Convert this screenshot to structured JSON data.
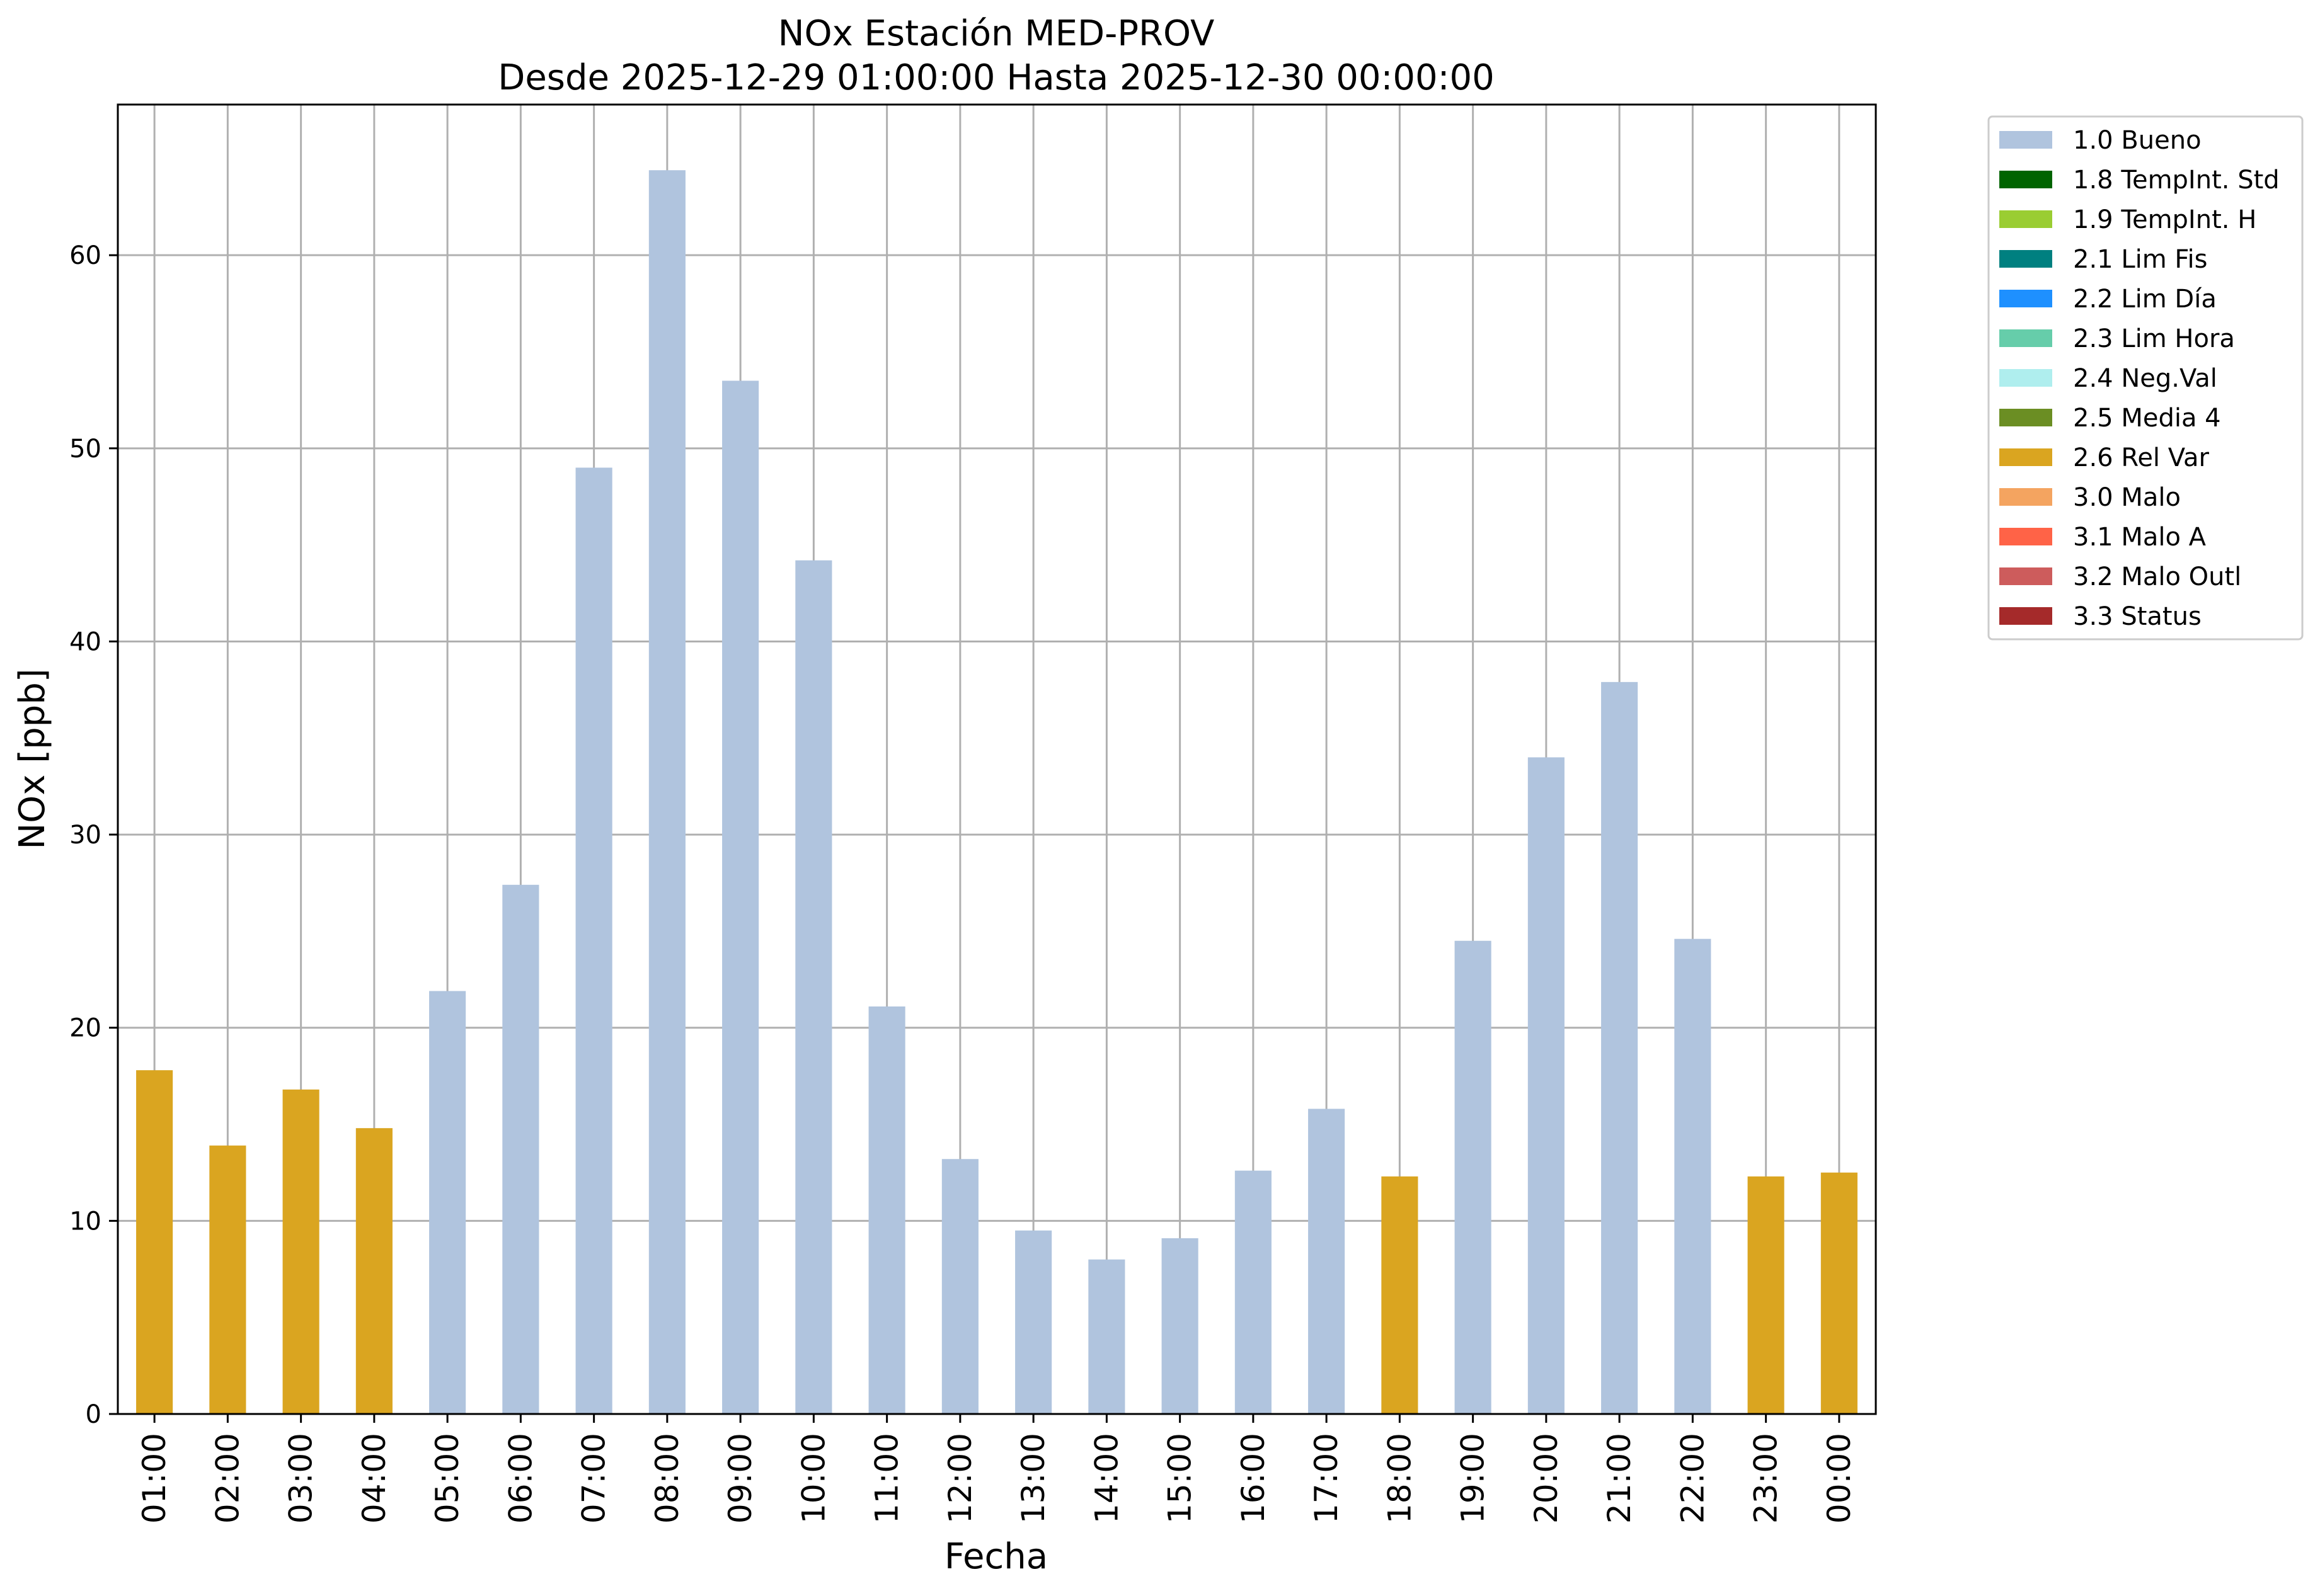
{
  "chart_data": {
    "type": "bar",
    "title": "NOx Estación MED-PROV",
    "subtitle": "Desde 2025-12-29 01:00:00 Hasta 2025-12-30 00:00:00",
    "xlabel": "Fecha",
    "ylabel": "NOx [ppb]",
    "ylim": [
      0,
      67.8
    ],
    "yticks": [
      0,
      10,
      20,
      30,
      40,
      50,
      60
    ],
    "grid": true,
    "legend_position": "outside-top-right",
    "categories": [
      "01:00",
      "02:00",
      "03:00",
      "04:00",
      "05:00",
      "06:00",
      "07:00",
      "08:00",
      "09:00",
      "10:00",
      "11:00",
      "12:00",
      "13:00",
      "14:00",
      "15:00",
      "16:00",
      "17:00",
      "18:00",
      "19:00",
      "20:00",
      "21:00",
      "22:00",
      "23:00",
      "00:00"
    ],
    "values": [
      17.8,
      13.9,
      16.8,
      14.8,
      21.9,
      27.4,
      49.0,
      64.4,
      53.5,
      44.2,
      21.1,
      13.2,
      9.5,
      8.0,
      9.1,
      12.6,
      15.8,
      12.3,
      24.5,
      34.0,
      37.9,
      24.6,
      12.3,
      12.5
    ],
    "flags": [
      "2.6 Rel Var",
      "2.6 Rel Var",
      "2.6 Rel Var",
      "2.6 Rel Var",
      "1.0 Bueno",
      "1.0 Bueno",
      "1.0 Bueno",
      "1.0 Bueno",
      "1.0 Bueno",
      "1.0 Bueno",
      "1.0 Bueno",
      "1.0 Bueno",
      "1.0 Bueno",
      "1.0 Bueno",
      "1.0 Bueno",
      "1.0 Bueno",
      "1.0 Bueno",
      "2.6 Rel Var",
      "1.0 Bueno",
      "1.0 Bueno",
      "1.0 Bueno",
      "1.0 Bueno",
      "2.6 Rel Var",
      "2.6 Rel Var"
    ],
    "legend": [
      {
        "label": "1.0 Bueno",
        "color": "#b0c4de"
      },
      {
        "label": "1.8 TempInt. Std",
        "color": "#006400"
      },
      {
        "label": "1.9 TempInt. H",
        "color": "#9acd32"
      },
      {
        "label": "2.1 Lim Fis",
        "color": "#008080"
      },
      {
        "label": "2.2 Lim Día",
        "color": "#1e90ff"
      },
      {
        "label": "2.3 Lim Hora",
        "color": "#66cdaa"
      },
      {
        "label": "2.4 Neg.Val",
        "color": "#afeeee"
      },
      {
        "label": "2.5 Media 4",
        "color": "#6b8e23"
      },
      {
        "label": "2.6 Rel Var",
        "color": "#daa520"
      },
      {
        "label": "3.0 Malo",
        "color": "#f4a460"
      },
      {
        "label": "3.1 Malo A",
        "color": "#ff6347"
      },
      {
        "label": "3.2 Malo Outl",
        "color": "#cd5c5c"
      },
      {
        "label": "3.3 Status",
        "color": "#a52a2a"
      }
    ]
  }
}
